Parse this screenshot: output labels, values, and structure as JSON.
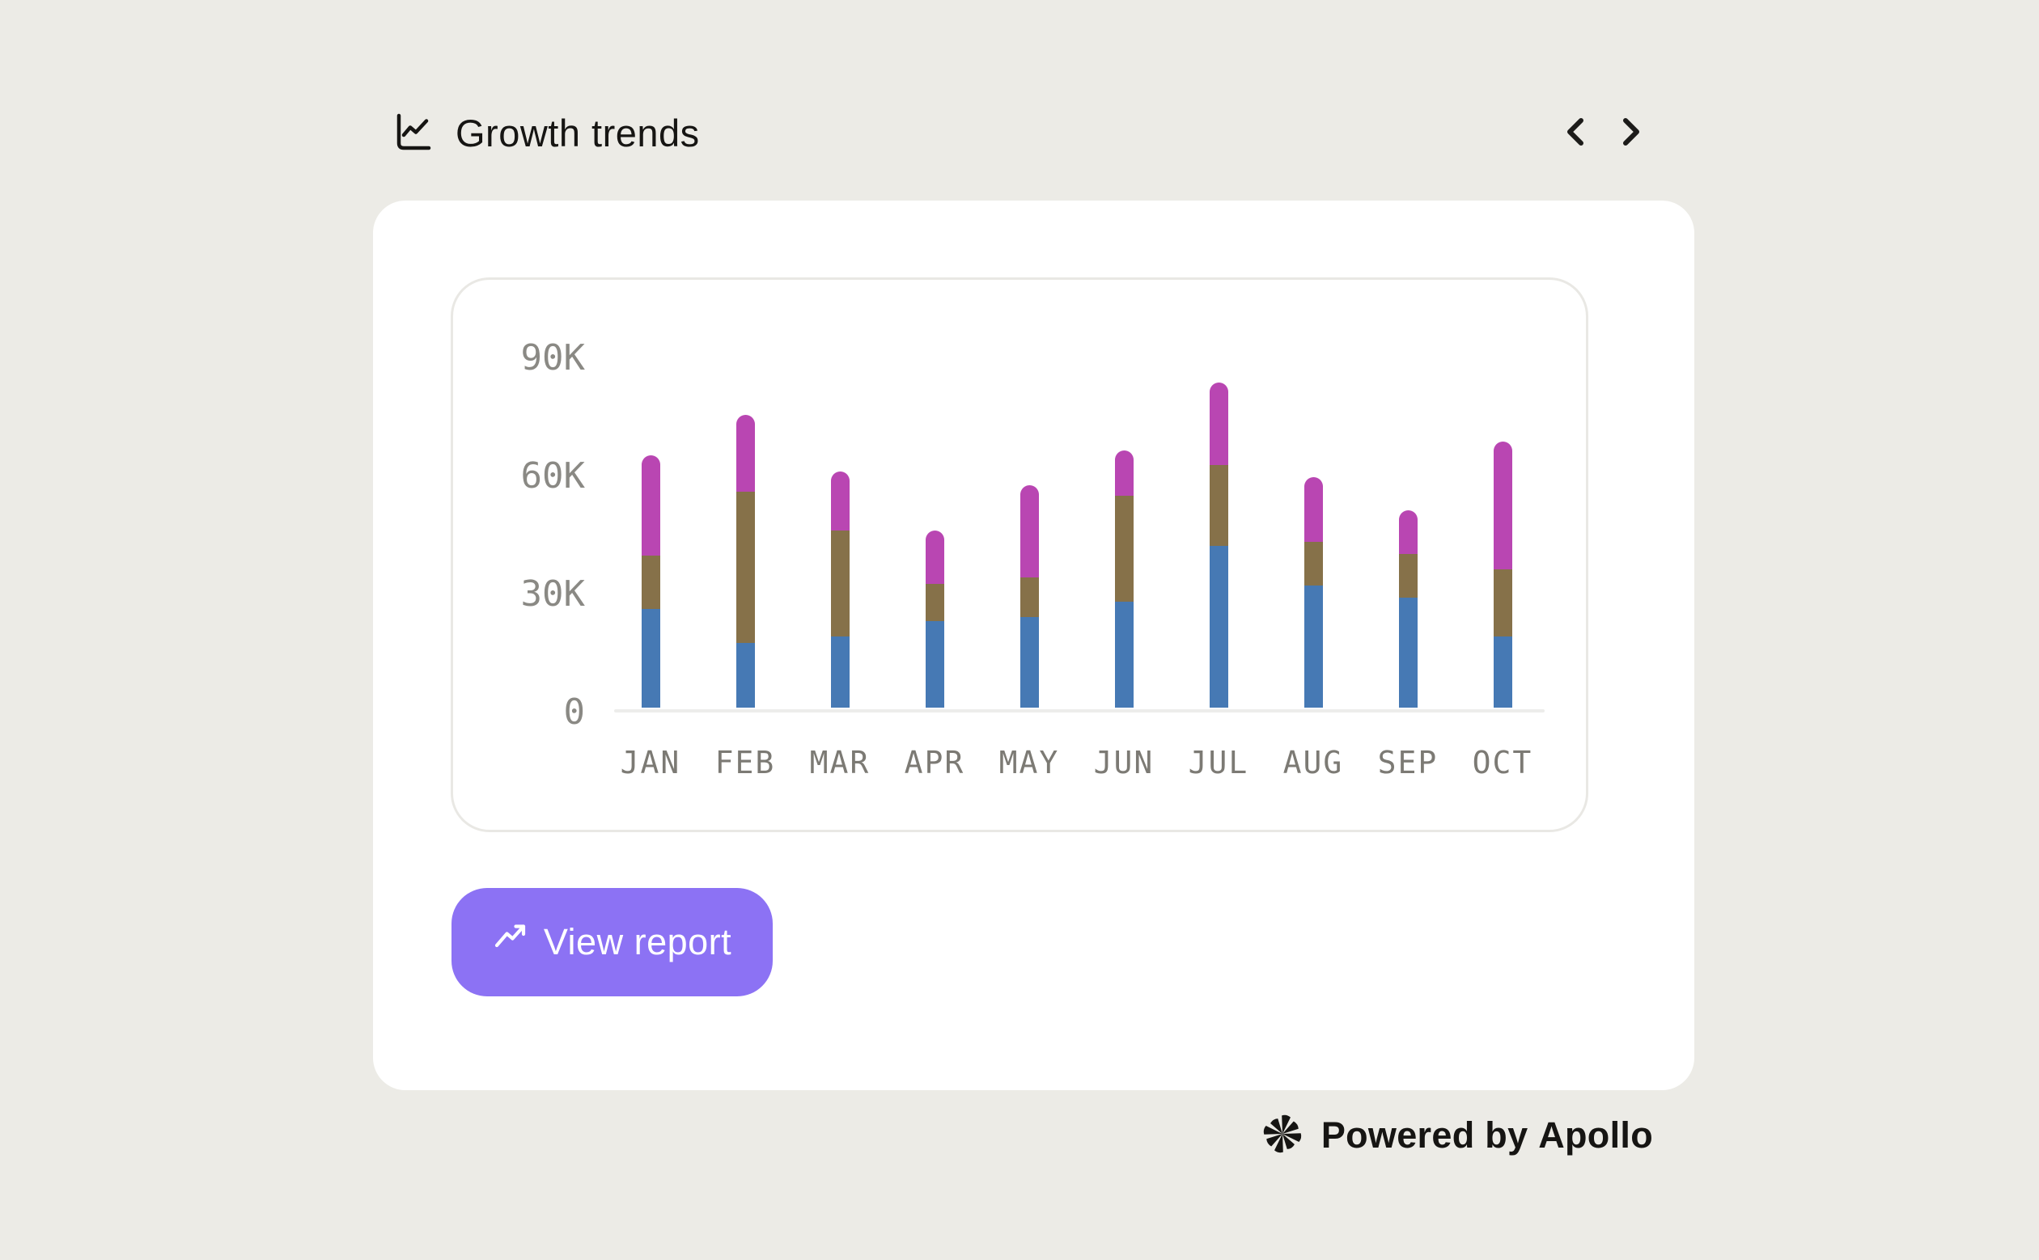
{
  "header": {
    "title": "Growth trends",
    "title_icon": "line-chart-icon",
    "nav": {
      "prev": "chevron-left",
      "next": "chevron-right"
    }
  },
  "chart_data": {
    "type": "bar",
    "stacked": true,
    "title": "Growth trends",
    "unit": "thousands (K)",
    "categories": [
      "JAN",
      "FEB",
      "MAR",
      "APR",
      "MAY",
      "JUN",
      "JUL",
      "AUG",
      "SEP",
      "OCT"
    ],
    "series": [
      {
        "name": "segment-bottom",
        "color": "#4679B4",
        "values": [
          25,
          16.5,
          18,
          22,
          23,
          27,
          41,
          31,
          28,
          18
        ]
      },
      {
        "name": "segment-middle",
        "color": "#867149",
        "values": [
          13.5,
          38.5,
          27,
          9.5,
          10,
          27,
          20.5,
          11,
          11,
          17
        ]
      },
      {
        "name": "segment-top",
        "color": "#B946B2",
        "values": [
          25.5,
          19.5,
          15,
          13.5,
          23.5,
          11.5,
          21,
          16.5,
          11,
          32.5
        ]
      }
    ],
    "totals": [
      64,
      74.5,
      60,
      45,
      56.5,
      65.5,
      82.5,
      58.5,
      50,
      67.5
    ],
    "y_ticks": [
      "90K",
      "60K",
      "30K",
      "0"
    ],
    "ylim": [
      0,
      90
    ],
    "xlabel": "",
    "ylabel": "",
    "legend": "none",
    "grid": "baseline-only"
  },
  "button": {
    "label": "View report",
    "icon": "trending-up-icon"
  },
  "footer": {
    "powered_by": "Powered by ",
    "brand": "Apollo",
    "icon": "apollo-asterisk-logo"
  },
  "colors": {
    "page_background": "#ECEBE6",
    "card_background": "#FFFFFF",
    "panel_border": "#E9E8E4",
    "axis_line": "#EDEDEB",
    "bar_blue": "#4679B4",
    "bar_olive": "#867149",
    "bar_magenta": "#B946B2",
    "button_purple": "#8C72F4",
    "text_primary": "#161513",
    "y_label_gray": "#8A8984",
    "x_label_gray": "#7C7A74"
  }
}
